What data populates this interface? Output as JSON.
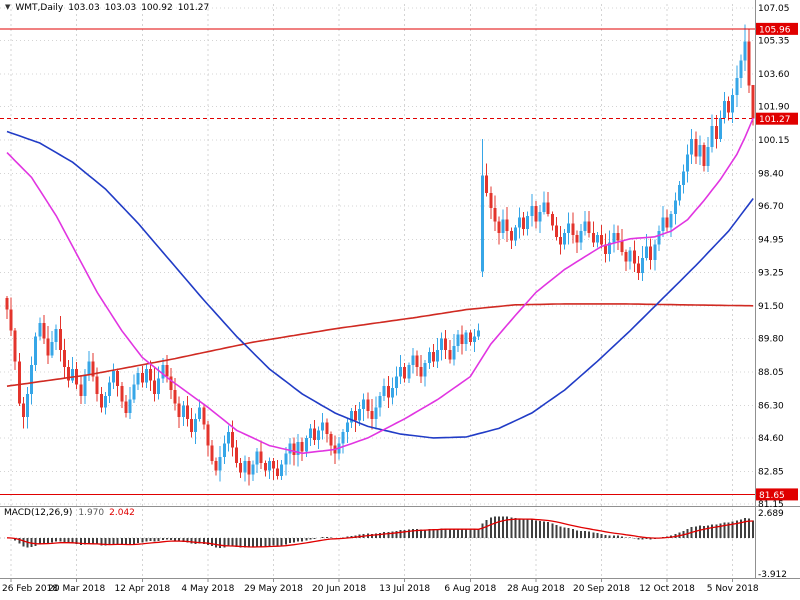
{
  "window": {
    "title": "WMT,Daily"
  },
  "quote": {
    "marker_icon": "▼",
    "symbol": "WMT,Daily",
    "open": "103.03",
    "high": "103.03",
    "low": "100.92",
    "close": "101.27"
  },
  "indicator": {
    "label": "MACD(12,26,9)",
    "macd_value": "1.970",
    "signal_value": "2.042"
  },
  "colors": {
    "background": "#ffffff",
    "grid": "#d4d4d4",
    "candle_up": "#36a6e7",
    "candle_down": "#e3342c",
    "ma_blue": "#213cc6",
    "ma_magenta": "#e135e1",
    "ma_red": "#d02a22",
    "level_red": "#e00000",
    "histogram": "#3f3f3f",
    "signal": "#e00000",
    "axis_text": "#000000",
    "border": "#909090",
    "badge_text": "#ffffff"
  },
  "chart_data": {
    "type": "candlestick",
    "symbol": "WMT",
    "timeframe": "Daily",
    "price_range": {
      "min": 81.15,
      "max": 107.05
    },
    "price_axis_labels": [
      "107.05",
      "105.35",
      "103.60",
      "101.90",
      "100.15",
      "98.40",
      "96.70",
      "94.95",
      "93.25",
      "91.50",
      "89.80",
      "88.05",
      "86.30",
      "84.60",
      "82.85",
      "81.15"
    ],
    "price_badges": [
      {
        "label": "105.96",
        "price": 105.96
      },
      {
        "label": "101.27",
        "price": 101.27
      },
      {
        "label": "81.65",
        "price": 81.65
      }
    ],
    "levels": [
      {
        "price": 105.96,
        "dash": ""
      },
      {
        "price": 81.65,
        "dash": ""
      },
      {
        "price": 101.27,
        "dash": "4,3"
      }
    ],
    "time_labels": [
      {
        "index": 1,
        "label": "26 Feb 2018"
      },
      {
        "index": 17,
        "label": "20 Mar 2018"
      },
      {
        "index": 33,
        "label": "12 Apr 2018"
      },
      {
        "index": 49,
        "label": "4 May 2018"
      },
      {
        "index": 65,
        "label": "29 May 2018"
      },
      {
        "index": 81,
        "label": "20 Jun 2018"
      },
      {
        "index": 97,
        "label": "13 Jul 2018"
      },
      {
        "index": 113,
        "label": "6 Aug 2018"
      },
      {
        "index": 129,
        "label": "28 Aug 2018"
      },
      {
        "index": 145,
        "label": "20 Sep 2018"
      },
      {
        "index": 161,
        "label": "12 Oct 2018"
      },
      {
        "index": 177,
        "label": "5 Nov 2018"
      }
    ],
    "closes": [
      91.3,
      90.2,
      88.6,
      86.4,
      85.7,
      86.9,
      88.4,
      89.9,
      90.6,
      89.8,
      88.9,
      89.6,
      90.3,
      89.2,
      88.3,
      87.6,
      88.2,
      87.4,
      86.8,
      87.9,
      88.6,
      87.8,
      86.9,
      86.2,
      86.8,
      87.5,
      88.1,
      87.3,
      86.5,
      85.9,
      86.6,
      87.4,
      88.0,
      87.5,
      88.2,
      87.6,
      86.9,
      87.7,
      88.4,
      87.8,
      87.1,
      86.4,
      85.7,
      86.3,
      85.6,
      84.9,
      85.6,
      86.2,
      85.3,
      84.2,
      83.4,
      82.9,
      83.6,
      84.3,
      84.9,
      84.1,
      83.3,
      82.8,
      83.4,
      82.7,
      83.2,
      83.9,
      83.3,
      82.9,
      83.4,
      83.0,
      82.6,
      83.2,
      83.8,
      84.3,
      83.7,
      84.4,
      83.9,
      84.6,
      85.1,
      84.5,
      85.0,
      85.4,
      84.8,
      84.2,
      83.8,
      84.3,
      84.9,
      85.4,
      86.0,
      85.5,
      86.1,
      86.6,
      86.0,
      85.6,
      86.2,
      86.8,
      87.3,
      86.7,
      87.2,
      87.8,
      88.3,
      87.7,
      88.4,
      88.9,
      88.3,
      87.8,
      88.5,
      89.1,
      88.6,
      89.2,
      89.8,
      89.2,
      88.7,
      89.4,
      90.0,
      89.5,
      90.1,
      89.6,
      89.9,
      90.2,
      98.3,
      97.4,
      96.6,
      95.9,
      95.3,
      96.0,
      95.4,
      94.9,
      95.6,
      96.1,
      95.5,
      96.2,
      96.7,
      95.9,
      96.4,
      96.9,
      96.3,
      95.7,
      95.1,
      94.7,
      95.3,
      95.8,
      95.2,
      94.8,
      95.4,
      95.9,
      95.3,
      94.8,
      95.2,
      94.7,
      94.2,
      94.8,
      95.3,
      94.9,
      94.3,
      93.8,
      94.4,
      93.7,
      93.2,
      94.0,
      94.6,
      93.9,
      94.7,
      95.4,
      96.1,
      95.6,
      96.3,
      97.0,
      97.8,
      98.5,
      99.4,
      100.2,
      99.3,
      99.9,
      98.8,
      99.8,
      100.9,
      100.2,
      101.3,
      102.2,
      101.6,
      102.5,
      103.4,
      104.3,
      105.3,
      103.0,
      101.27
    ],
    "special_bars": {
      "0": {
        "open": 91.9
      },
      "116": {
        "open": 93.3,
        "high": 100.2,
        "low": 93.0
      },
      "180": {
        "high": 106.2
      },
      "181": {
        "open": 105.3,
        "high": 105.96,
        "low": 102.6
      },
      "182": {
        "open": 103.03,
        "high": 103.03,
        "low": 100.92
      }
    },
    "moving_averages": [
      {
        "name": "ma-slow-red",
        "color_key": "ma_red",
        "points": [
          [
            0,
            87.3
          ],
          [
            20,
            87.9
          ],
          [
            40,
            88.7
          ],
          [
            60,
            89.6
          ],
          [
            80,
            90.3
          ],
          [
            100,
            90.9
          ],
          [
            112,
            91.3
          ],
          [
            124,
            91.55
          ],
          [
            136,
            91.6
          ],
          [
            150,
            91.6
          ],
          [
            165,
            91.55
          ],
          [
            182,
            91.5
          ]
        ]
      },
      {
        "name": "ma-mid-blue",
        "color_key": "ma_blue",
        "points": [
          [
            0,
            100.6
          ],
          [
            8,
            100.0
          ],
          [
            16,
            99.0
          ],
          [
            24,
            97.6
          ],
          [
            32,
            95.8
          ],
          [
            40,
            93.8
          ],
          [
            48,
            91.8
          ],
          [
            56,
            89.9
          ],
          [
            64,
            88.2
          ],
          [
            72,
            86.9
          ],
          [
            80,
            85.9
          ],
          [
            88,
            85.2
          ],
          [
            96,
            84.8
          ],
          [
            104,
            84.6
          ],
          [
            112,
            84.65
          ],
          [
            120,
            85.1
          ],
          [
            128,
            85.9
          ],
          [
            136,
            87.1
          ],
          [
            144,
            88.6
          ],
          [
            152,
            90.2
          ],
          [
            160,
            91.9
          ],
          [
            168,
            93.6
          ],
          [
            176,
            95.4
          ],
          [
            182,
            97.1
          ]
        ]
      },
      {
        "name": "ma-fast-magenta",
        "color_key": "ma_magenta",
        "points": [
          [
            0,
            99.5
          ],
          [
            6,
            98.2
          ],
          [
            12,
            96.2
          ],
          [
            17,
            94.2
          ],
          [
            22,
            92.2
          ],
          [
            28,
            90.2
          ],
          [
            33,
            88.8
          ],
          [
            40,
            87.6
          ],
          [
            49,
            86.2
          ],
          [
            56,
            85.0
          ],
          [
            64,
            84.2
          ],
          [
            72,
            83.8
          ],
          [
            80,
            84.0
          ],
          [
            88,
            84.6
          ],
          [
            97,
            85.6
          ],
          [
            105,
            86.6
          ],
          [
            113,
            87.8
          ],
          [
            118,
            89.5
          ],
          [
            124,
            91.0
          ],
          [
            129,
            92.2
          ],
          [
            136,
            93.4
          ],
          [
            145,
            94.6
          ],
          [
            152,
            95.0
          ],
          [
            158,
            95.1
          ],
          [
            162,
            95.4
          ],
          [
            166,
            96.0
          ],
          [
            170,
            97.0
          ],
          [
            174,
            98.1
          ],
          [
            178,
            99.4
          ],
          [
            180,
            100.3
          ],
          [
            182,
            101.3
          ]
        ]
      }
    ],
    "macd": {
      "fast": 12,
      "slow": 26,
      "signal": 9,
      "range": {
        "min": -3.912,
        "max": 2.689
      },
      "axis_labels": [
        {
          "value": 2.689,
          "label": "2.689"
        },
        {
          "value": -3.912,
          "label": "-3.912"
        }
      ]
    }
  }
}
